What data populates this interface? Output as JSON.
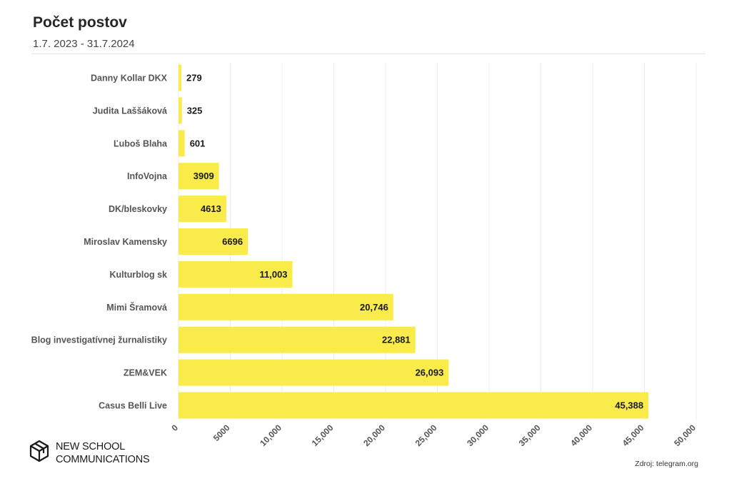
{
  "header": {
    "title": "Počet postov",
    "subtitle": "1.7. 2023 - 31.7.2024"
  },
  "footer": {
    "logo_line1": "NEW SCHOOL",
    "logo_line2": "COMMUNICATIONS",
    "source": "Zdroj: telegram.org"
  },
  "colors": {
    "bar": "#f9ec4a",
    "grid": "#ececec"
  },
  "chart_data": {
    "type": "bar",
    "orientation": "horizontal",
    "title": "Počet postov",
    "subtitle": "1.7. 2023 - 31.7.2024",
    "categories": [
      "Danny Kollar DKX",
      "Judita Laššáková",
      "Ľuboš Blaha",
      "InfoVojna",
      "DK/bleskovky",
      "Miroslav Kamensky",
      "Kulturblog sk",
      "Mimi Šramová",
      "Blog investigatívnej žurnalistiky",
      "ZEM&VEK",
      "Casus Belli Live"
    ],
    "values": [
      279,
      325,
      601,
      3909,
      4613,
      6696,
      11003,
      20746,
      22881,
      26093,
      45388
    ],
    "value_labels": [
      "279",
      "325",
      "601",
      "3909",
      "4613",
      "6696",
      "11,003",
      "20,746",
      "22,881",
      "26,093",
      "45,388"
    ],
    "xlim": [
      0,
      50000
    ],
    "x_ticks": [
      0,
      5000,
      10000,
      15000,
      20000,
      25000,
      30000,
      35000,
      40000,
      45000,
      50000
    ],
    "x_tick_labels": [
      "0",
      "5000",
      "10,000",
      "15,000",
      "20,000",
      "25,000",
      "30,000",
      "35,000",
      "40,000",
      "45,000",
      "50,000"
    ],
    "grid": true,
    "legend": "none",
    "xlabel": "",
    "ylabel": ""
  }
}
